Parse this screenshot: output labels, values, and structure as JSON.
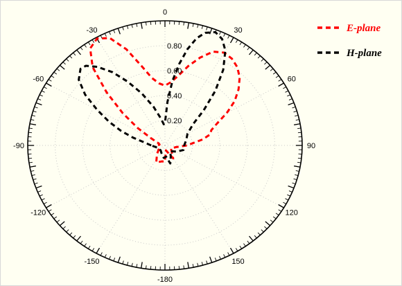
{
  "chart_data": {
    "type": "polar-line",
    "angle_unit": "deg",
    "angle_ticks": [
      0,
      30,
      60,
      90,
      120,
      150,
      -180,
      -150,
      -120,
      -90,
      -60,
      -30
    ],
    "angle_tick_labels": [
      "0",
      "30",
      "60",
      "90",
      "120",
      "150",
      "-180",
      "-150",
      "-120",
      "-90",
      "-60",
      "-30"
    ],
    "rlim": [
      0,
      1
    ],
    "r_ticks": [
      0.2,
      0.4,
      0.6,
      0.8
    ],
    "r_tick_labels": [
      "0.20",
      "0.40",
      "0.60",
      "0.80"
    ],
    "grid": true,
    "legend_position": "top-right",
    "series": [
      {
        "name": "E-plane",
        "color": "#ff0000",
        "dash": "dashed",
        "points": [
          {
            "theta": -90,
            "r": 0.05
          },
          {
            "theta": -80,
            "r": 0.04
          },
          {
            "theta": -70,
            "r": 0.05
          },
          {
            "theta": -60,
            "r": 0.12
          },
          {
            "theta": -55,
            "r": 0.24
          },
          {
            "theta": -50,
            "r": 0.4
          },
          {
            "theta": -45,
            "r": 0.6
          },
          {
            "theta": -40,
            "r": 0.82
          },
          {
            "theta": -35,
            "r": 0.95
          },
          {
            "theta": -30,
            "r": 0.99
          },
          {
            "theta": -25,
            "r": 0.95
          },
          {
            "theta": -20,
            "r": 0.82
          },
          {
            "theta": -15,
            "r": 0.66
          },
          {
            "theta": -10,
            "r": 0.55
          },
          {
            "theta": -5,
            "r": 0.5
          },
          {
            "theta": 0,
            "r": 0.48
          },
          {
            "theta": 5,
            "r": 0.51
          },
          {
            "theta": 10,
            "r": 0.57
          },
          {
            "theta": 15,
            "r": 0.66
          },
          {
            "theta": 20,
            "r": 0.75
          },
          {
            "theta": 25,
            "r": 0.83
          },
          {
            "theta": 30,
            "r": 0.86
          },
          {
            "theta": 35,
            "r": 0.85
          },
          {
            "theta": 40,
            "r": 0.82
          },
          {
            "theta": 45,
            "r": 0.77
          },
          {
            "theta": 50,
            "r": 0.7
          },
          {
            "theta": 55,
            "r": 0.62
          },
          {
            "theta": 60,
            "r": 0.52
          },
          {
            "theta": 65,
            "r": 0.42
          },
          {
            "theta": 70,
            "r": 0.36
          },
          {
            "theta": 75,
            "r": 0.34
          },
          {
            "theta": 80,
            "r": 0.28
          },
          {
            "theta": 90,
            "r": 0.16
          },
          {
            "theta": 100,
            "r": 0.08
          },
          {
            "theta": 120,
            "r": 0.05
          },
          {
            "theta": 150,
            "r": 0.12
          },
          {
            "theta": 170,
            "r": 0.04
          },
          {
            "theta": 180,
            "r": 0.13
          },
          {
            "theta": -170,
            "r": 0.13
          },
          {
            "theta": -155,
            "r": 0.15
          },
          {
            "theta": -140,
            "r": 0.09
          },
          {
            "theta": -120,
            "r": 0.05
          },
          {
            "theta": -100,
            "r": 0.05
          },
          {
            "theta": -90,
            "r": 0.05
          }
        ]
      },
      {
        "name": "H-plane",
        "color": "#000000",
        "dash": "dashed",
        "points": [
          {
            "theta": -90,
            "r": 0.1
          },
          {
            "theta": -80,
            "r": 0.16
          },
          {
            "theta": -75,
            "r": 0.24
          },
          {
            "theta": -70,
            "r": 0.34
          },
          {
            "theta": -65,
            "r": 0.45
          },
          {
            "theta": -60,
            "r": 0.57
          },
          {
            "theta": -55,
            "r": 0.71
          },
          {
            "theta": -50,
            "r": 0.82
          },
          {
            "theta": -45,
            "r": 0.87
          },
          {
            "theta": -42,
            "r": 0.86
          },
          {
            "theta": -38,
            "r": 0.8
          },
          {
            "theta": -33,
            "r": 0.7
          },
          {
            "theta": -28,
            "r": 0.58
          },
          {
            "theta": -22,
            "r": 0.45
          },
          {
            "theta": -15,
            "r": 0.32
          },
          {
            "theta": -8,
            "r": 0.22
          },
          {
            "theta": -3,
            "r": 0.17
          },
          {
            "theta": 0,
            "r": 0.18
          },
          {
            "theta": 3,
            "r": 0.35
          },
          {
            "theta": 6,
            "r": 0.52
          },
          {
            "theta": 9,
            "r": 0.66
          },
          {
            "theta": 12,
            "r": 0.79
          },
          {
            "theta": 15,
            "r": 0.89
          },
          {
            "theta": 18,
            "r": 0.95
          },
          {
            "theta": 22,
            "r": 0.98
          },
          {
            "theta": 26,
            "r": 0.95
          },
          {
            "theta": 30,
            "r": 0.88
          },
          {
            "theta": 35,
            "r": 0.74
          },
          {
            "theta": 40,
            "r": 0.57
          },
          {
            "theta": 45,
            "r": 0.4
          },
          {
            "theta": 50,
            "r": 0.27
          },
          {
            "theta": 60,
            "r": 0.19
          },
          {
            "theta": 75,
            "r": 0.16
          },
          {
            "theta": 90,
            "r": 0.14
          },
          {
            "theta": 105,
            "r": 0.14
          },
          {
            "theta": 120,
            "r": 0.1
          },
          {
            "theta": 140,
            "r": 0.06
          },
          {
            "theta": 155,
            "r": 0.1
          },
          {
            "theta": 165,
            "r": 0.15
          },
          {
            "theta": 175,
            "r": 0.09
          },
          {
            "theta": -175,
            "r": 0.1
          },
          {
            "theta": -160,
            "r": 0.07
          },
          {
            "theta": -140,
            "r": 0.05
          },
          {
            "theta": -120,
            "r": 0.05
          },
          {
            "theta": -100,
            "r": 0.07
          },
          {
            "theta": -90,
            "r": 0.1
          }
        ]
      }
    ]
  }
}
